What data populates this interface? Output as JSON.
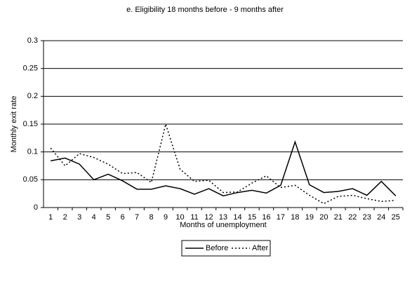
{
  "chart_data": {
    "type": "line",
    "title": "e. Eligibility 18 months before - 9 months after",
    "x_label": "Months of unemployment",
    "y_label": "Monthly exit rate",
    "categories": [
      1,
      2,
      3,
      4,
      5,
      6,
      7,
      8,
      9,
      10,
      11,
      12,
      13,
      14,
      15,
      16,
      17,
      18,
      19,
      20,
      21,
      22,
      23,
      24,
      25
    ],
    "series": [
      {
        "name": "Before",
        "color": "#000000",
        "line_style": "solid",
        "values": [
          0.084,
          0.089,
          0.078,
          0.05,
          0.06,
          0.048,
          0.033,
          0.033,
          0.039,
          0.034,
          0.024,
          0.034,
          0.021,
          0.027,
          0.031,
          0.026,
          0.04,
          0.118,
          0.041,
          0.027,
          0.029,
          0.034,
          0.022,
          0.047,
          0.021
        ]
      },
      {
        "name": "After",
        "color": "#000000",
        "line_style": "dotted",
        "values": [
          0.107,
          0.075,
          0.097,
          0.09,
          0.078,
          0.061,
          0.063,
          0.045,
          0.15,
          0.069,
          0.047,
          0.049,
          0.027,
          0.028,
          0.044,
          0.057,
          0.036,
          0.04,
          0.022,
          0.007,
          0.02,
          0.022,
          0.016,
          0.011,
          0.013
        ]
      }
    ],
    "ylim": [
      0,
      0.3
    ],
    "yticks": [
      0,
      0.05,
      0.1,
      0.15,
      0.2,
      0.25,
      0.3
    ],
    "grid": true,
    "legend": "bottom"
  }
}
